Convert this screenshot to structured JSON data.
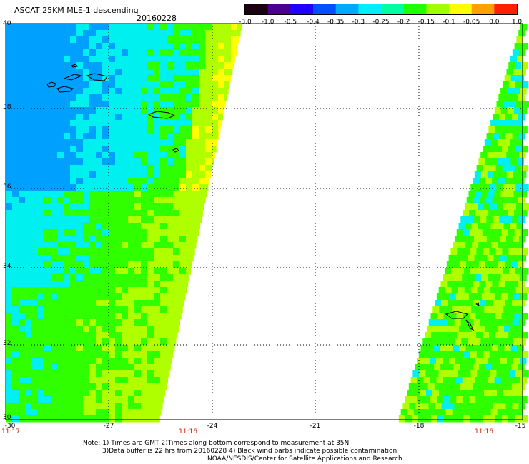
{
  "header": {
    "title": "ASCAT 25KM MLE-1 descending",
    "date": "20160228"
  },
  "colorbar": {
    "labels": [
      "-3.0",
      "-1.0",
      "-0.5",
      "-0.4",
      "-0.35",
      "-0.3",
      "-0.25",
      "-0.2",
      "-0.15",
      "-0.1",
      "-0.05",
      "0.0",
      "1.0"
    ],
    "colors": [
      "#1a0010",
      "#4b0090",
      "#2000ff",
      "#0050ff",
      "#00a8ff",
      "#00eeff",
      "#00ffa0",
      "#20ff00",
      "#a0ff00",
      "#ffff00",
      "#ffa000",
      "#ff2000"
    ]
  },
  "map": {
    "lon_range": [
      -30,
      -15
    ],
    "lat_range": [
      30,
      40
    ],
    "x_ticks": [
      "-30",
      "-27",
      "-24",
      "-21",
      "-18",
      "-15"
    ],
    "y_ticks": [
      "40",
      "38",
      "36",
      "34",
      "32",
      "30"
    ],
    "swath_times": [
      "11:17",
      "11:16",
      "11:16"
    ]
  },
  "notes": {
    "line1": "Note: 1) Times are GMT 2)Times along bottom correspond to measurement at 35N",
    "line2": "3)Data buffer is 22 hrs from 20160228 4) Black wind barbs indicate possible contamination",
    "line3": "NOAA/NESDIS/Center for Satellite Applications and Research"
  }
}
